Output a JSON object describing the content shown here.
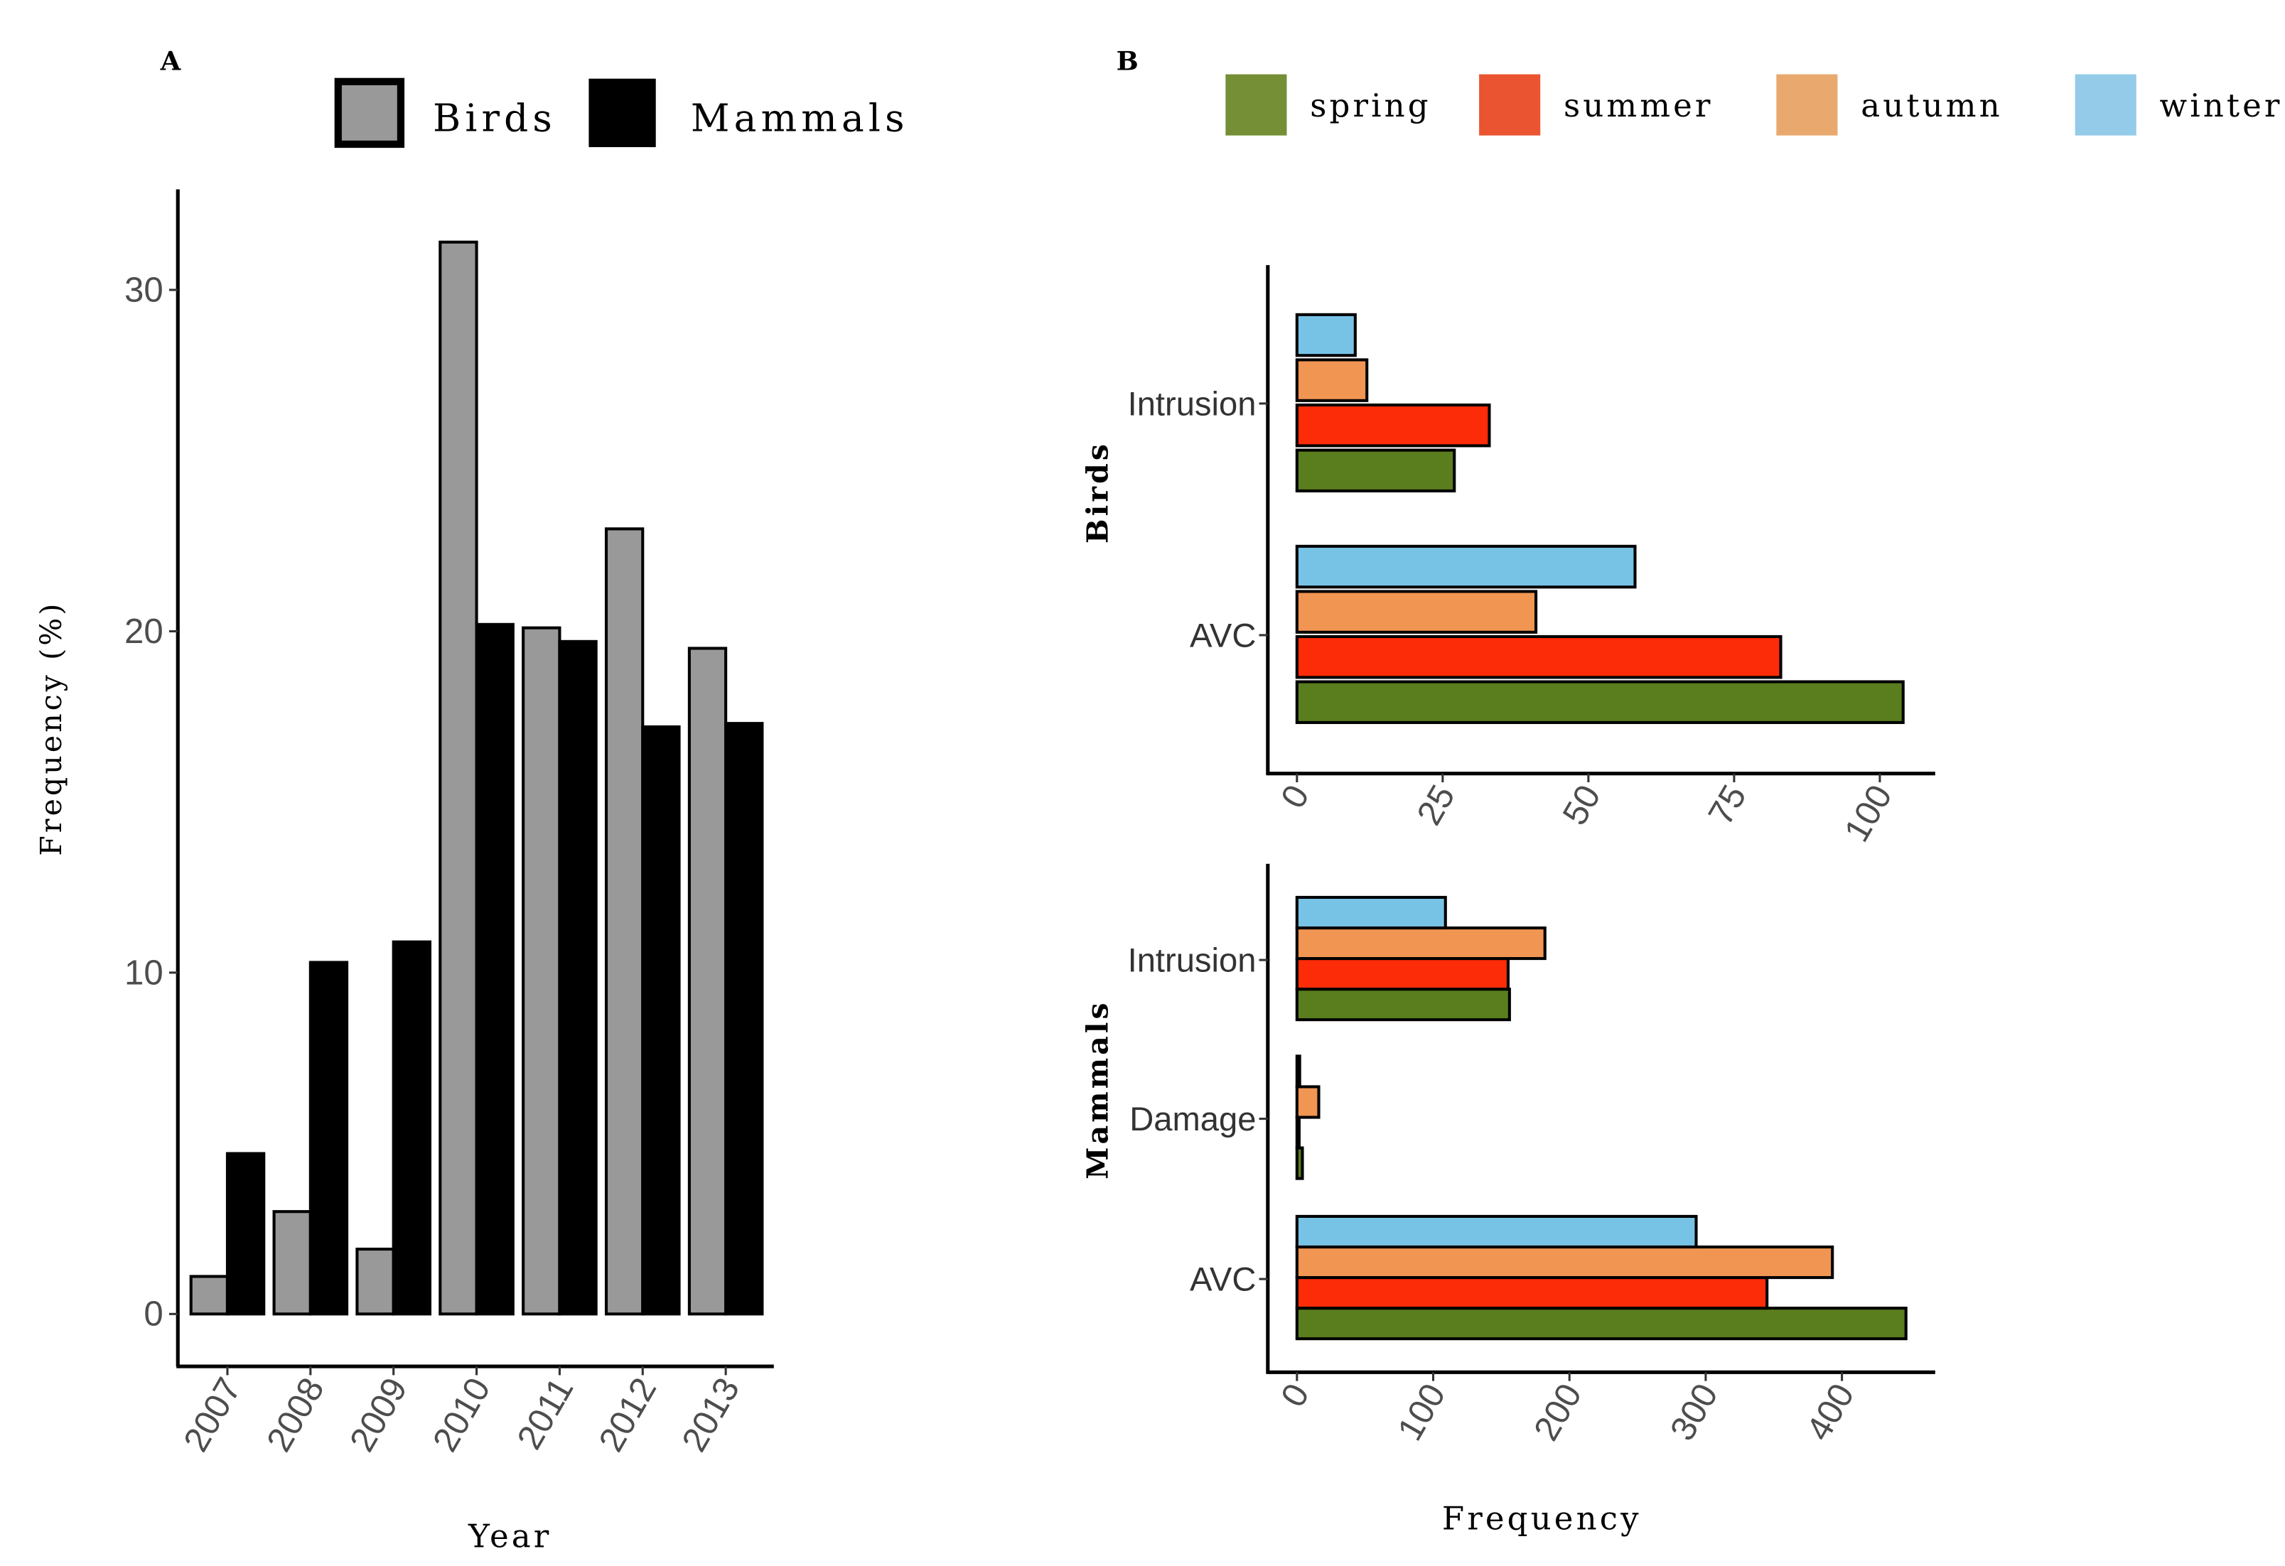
{
  "chart_data": [
    {
      "type": "bar",
      "panel_label": "A",
      "xlabel": "Year",
      "ylabel": "Frequency (%)",
      "ylim": [
        0,
        32
      ],
      "yticks": [
        "0",
        "10",
        "20",
        "30"
      ],
      "categories": [
        "2007",
        "2008",
        "2009",
        "2010",
        "2011",
        "2012",
        "2013"
      ],
      "legend_position": "top",
      "series": [
        {
          "name": "Birds",
          "color": "#999999",
          "values": [
            1.1,
            3.0,
            1.9,
            31.4,
            20.1,
            23.0,
            19.5
          ]
        },
        {
          "name": "Mammals",
          "color": "#000000",
          "values": [
            4.7,
            10.3,
            10.9,
            20.2,
            19.7,
            17.2,
            17.3
          ]
        }
      ]
    },
    {
      "type": "bar",
      "orientation": "horizontal",
      "panel_label": "B",
      "xlabel": "Frequency",
      "legend_position": "top",
      "legend": [
        {
          "name": "spring",
          "color": "#748f35"
        },
        {
          "name": "summer",
          "color": "#ea5430"
        },
        {
          "name": "autumn",
          "color": "#e9a96e"
        },
        {
          "name": "winter",
          "color": "#94cbe8"
        }
      ],
      "facets": [
        {
          "name": "Birds",
          "xlim": [
            0,
            108
          ],
          "xticks": [
            "0",
            "25",
            "50",
            "75",
            "100"
          ],
          "categories": [
            "AVC",
            "Intrusion"
          ],
          "series": [
            {
              "name": "spring",
              "color": "#5a7d1e",
              "values": [
                104,
                27
              ]
            },
            {
              "name": "summer",
              "color": "#fc2b08",
              "values": [
                83,
                33
              ]
            },
            {
              "name": "autumn",
              "color": "#f09552",
              "values": [
                41,
                12
              ]
            },
            {
              "name": "winter",
              "color": "#77c3e6",
              "values": [
                58,
                10
              ]
            }
          ]
        },
        {
          "name": "Mammals",
          "xlim": [
            0,
            465
          ],
          "xticks": [
            "0",
            "100",
            "200",
            "300",
            "400"
          ],
          "categories": [
            "AVC",
            "Damage",
            "Intrusion"
          ],
          "series": [
            {
              "name": "spring",
              "color": "#5a7d1e",
              "values": [
                447,
                4,
                156
              ]
            },
            {
              "name": "summer",
              "color": "#fc2b08",
              "values": [
                345,
                1,
                155
              ]
            },
            {
              "name": "autumn",
              "color": "#f09552",
              "values": [
                393,
                16,
                182
              ]
            },
            {
              "name": "winter",
              "color": "#77c3e6",
              "values": [
                293,
                2,
                109
              ]
            }
          ]
        }
      ]
    }
  ]
}
